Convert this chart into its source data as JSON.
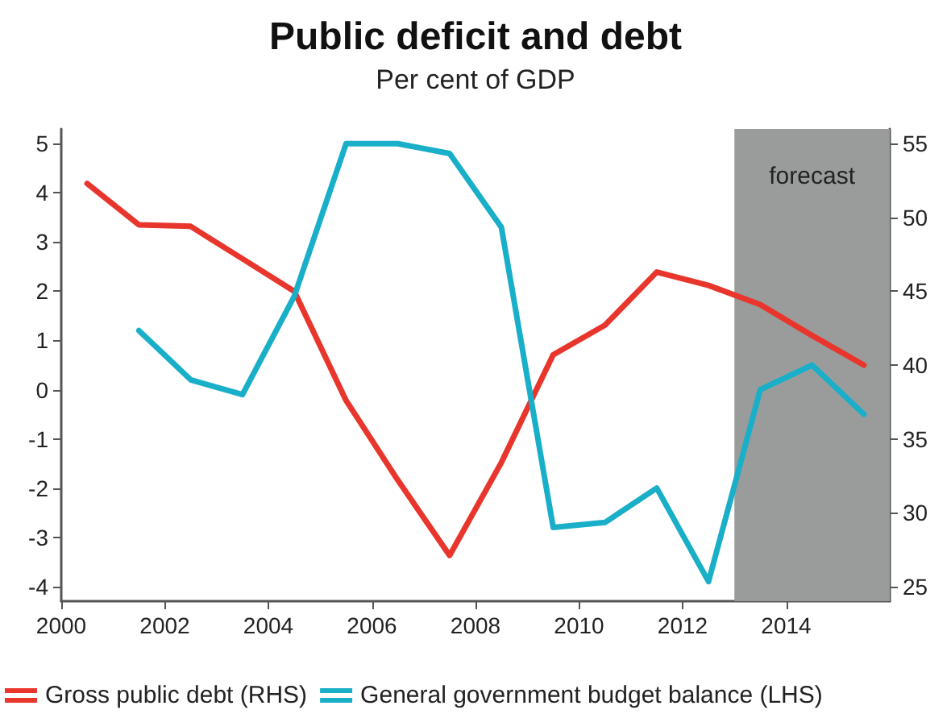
{
  "chart_data": {
    "type": "line",
    "title": "Public deficit and debt",
    "subtitle": "Per cent of GDP",
    "xlim": [
      2000,
      2016
    ],
    "xticks": [
      2000,
      2002,
      2004,
      2006,
      2008,
      2010,
      2012,
      2014
    ],
    "ylim": [
      -4.3,
      5.3
    ],
    "yticks": [
      -4,
      -3,
      -2,
      -1,
      0,
      1,
      2,
      3,
      4,
      5
    ],
    "y2lim": [
      24,
      56
    ],
    "y2ticks": [
      25,
      30,
      35,
      40,
      45,
      50,
      55
    ],
    "grid": false,
    "legend": "bottom left",
    "marker": "none",
    "line_style": "solid",
    "bands": [
      {
        "axis": "x",
        "from": 2013,
        "to": 2016,
        "label": "forecast",
        "color": "#9a9c9c"
      }
    ],
    "series": [
      {
        "name": "Gross public debt (RHS)",
        "color": "#e8362d",
        "axis": "y2",
        "x": [
          2000.5,
          2001.5,
          2002.5,
          2003.5,
          2004.5,
          2005.5,
          2006.5,
          2007.5,
          2008.5,
          2009.5,
          2010.5,
          2011.5,
          2012.5,
          2013.5,
          2014.5,
          2015.5
        ],
        "values": [
          52.3,
          49.5,
          49.4,
          47.2,
          45.0,
          37.6,
          32.2,
          27.1,
          33.4,
          40.7,
          42.7,
          46.3,
          45.4,
          44.1,
          42.0,
          40.0
        ]
      },
      {
        "name": "General government budget balance (LHS)",
        "color": "#1aafc8",
        "x": [
          2001.5,
          2002.5,
          2003.5,
          2004.5,
          2005.5,
          2006.5,
          2007.5,
          2008.5,
          2009.5,
          2010.5,
          2011.5,
          2012.5,
          2013.5,
          2014.5,
          2015.5
        ],
        "values": [
          1.2,
          0.2,
          -0.1,
          1.9,
          5.0,
          5.0,
          4.8,
          3.3,
          -2.8,
          -2.7,
          -2.0,
          -3.9,
          0.0,
          0.5,
          -0.5
        ]
      }
    ]
  }
}
